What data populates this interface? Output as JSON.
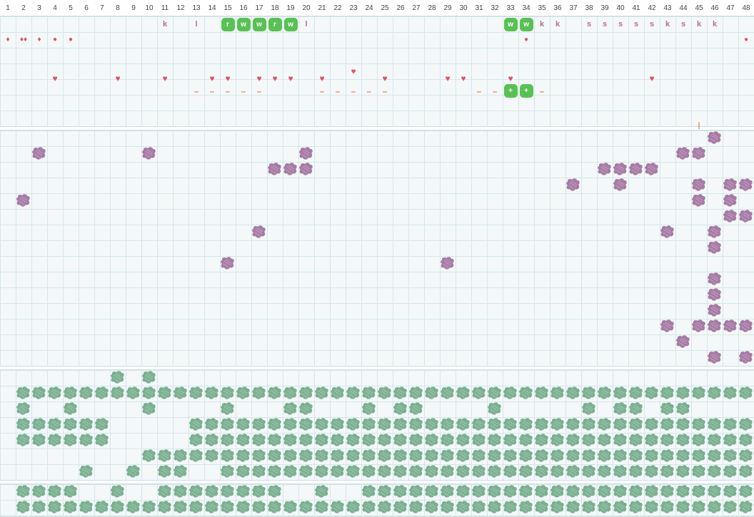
{
  "grid": {
    "columns": [
      "1",
      "2",
      "3",
      "4",
      "5",
      "6",
      "7",
      "8",
      "9",
      "10",
      "11",
      "12",
      "13",
      "14",
      "15",
      "16",
      "17",
      "18",
      "19",
      "20",
      "21",
      "22",
      "23",
      "24",
      "25",
      "26",
      "27",
      "28",
      "29",
      "30",
      "31",
      "32",
      "33",
      "34",
      "35",
      "36",
      "37",
      "38",
      "39",
      "40",
      "41",
      "42",
      "43",
      "44",
      "45",
      "46",
      "47",
      "48"
    ]
  },
  "colors": {
    "grid_bg": "#f4f8f9",
    "grid_line": "#d5e6ea",
    "purple_blob": "#a77ba5",
    "green_blob": "#7bb091",
    "green_tile": "#59c154",
    "red_marker": "#e0506a",
    "orange_marker": "#f08050",
    "letter_marker": "#b56f8e"
  },
  "icons": {
    "blob_purple": "purple-blob-icon",
    "blob_green": "green-blob-icon",
    "heart": "heart-icon",
    "drop": "drop-icon",
    "dot": "dot-icon"
  },
  "markers": [
    {
      "col": 11,
      "row": 1,
      "kind": "letter",
      "text": "k"
    },
    {
      "col": 13,
      "row": 1,
      "kind": "letter",
      "text": "l"
    },
    {
      "col": 15,
      "row": 1,
      "kind": "tile",
      "text": "r"
    },
    {
      "col": 16,
      "row": 1,
      "kind": "tile",
      "text": "w"
    },
    {
      "col": 17,
      "row": 1,
      "kind": "tile",
      "text": "w"
    },
    {
      "col": 18,
      "row": 1,
      "kind": "tile",
      "text": "r"
    },
    {
      "col": 19,
      "row": 1,
      "kind": "tile",
      "text": "w"
    },
    {
      "col": 20,
      "row": 1,
      "kind": "letter",
      "text": "l"
    },
    {
      "col": 33,
      "row": 1,
      "kind": "tile",
      "text": "w"
    },
    {
      "col": 34,
      "row": 1,
      "kind": "tile",
      "text": "w"
    },
    {
      "col": 35,
      "row": 1,
      "kind": "letter",
      "text": "k"
    },
    {
      "col": 36,
      "row": 1,
      "kind": "letter",
      "text": "k"
    },
    {
      "col": 38,
      "row": 1,
      "kind": "letter",
      "text": "s"
    },
    {
      "col": 39,
      "row": 1,
      "kind": "letter",
      "text": "s"
    },
    {
      "col": 40,
      "row": 1,
      "kind": "letter",
      "text": "s"
    },
    {
      "col": 41,
      "row": 1,
      "kind": "letter",
      "text": "s"
    },
    {
      "col": 42,
      "row": 1,
      "kind": "letter",
      "text": "s"
    },
    {
      "col": 43,
      "row": 1,
      "kind": "letter",
      "text": "k"
    },
    {
      "col": 44,
      "row": 1,
      "kind": "letter",
      "text": "s"
    },
    {
      "col": 45,
      "row": 1,
      "kind": "letter",
      "text": "k"
    },
    {
      "col": 46,
      "row": 1,
      "kind": "letter",
      "text": "k"
    },
    {
      "col": 1,
      "row": 2,
      "kind": "drop",
      "text": "♦"
    },
    {
      "col": 2,
      "row": 2,
      "kind": "drop",
      "text": "♦♦"
    },
    {
      "col": 3,
      "row": 2,
      "kind": "drop",
      "text": "♦"
    },
    {
      "col": 4,
      "row": 2,
      "kind": "dot",
      "text": "●"
    },
    {
      "col": 5,
      "row": 2,
      "kind": "dot",
      "text": "●"
    },
    {
      "col": 34,
      "row": 2,
      "kind": "dot",
      "text": "●"
    },
    {
      "col": 48,
      "row": 2,
      "kind": "dot",
      "text": "●"
    },
    {
      "col": 23,
      "row": 4,
      "kind": "heart",
      "text": "♥"
    },
    {
      "col": 4,
      "row": 4.45,
      "kind": "heart",
      "text": "♥"
    },
    {
      "col": 8,
      "row": 4.45,
      "kind": "heart",
      "text": "♥"
    },
    {
      "col": 11,
      "row": 4.45,
      "kind": "heart",
      "text": "♥"
    },
    {
      "col": 14,
      "row": 4.45,
      "kind": "heart",
      "text": "♥"
    },
    {
      "col": 15,
      "row": 4.45,
      "kind": "heart",
      "text": "♥"
    },
    {
      "col": 17,
      "row": 4.45,
      "kind": "heart",
      "text": "♥"
    },
    {
      "col": 18,
      "row": 4.45,
      "kind": "heart",
      "text": "♥"
    },
    {
      "col": 19,
      "row": 4.45,
      "kind": "heart",
      "text": "♥"
    },
    {
      "col": 21,
      "row": 4.45,
      "kind": "heart",
      "text": "♥"
    },
    {
      "col": 25,
      "row": 4.45,
      "kind": "heart",
      "text": "♥"
    },
    {
      "col": 29,
      "row": 4.45,
      "kind": "heart",
      "text": "♥"
    },
    {
      "col": 30,
      "row": 4.45,
      "kind": "heart",
      "text": "♥"
    },
    {
      "col": 33,
      "row": 4.45,
      "kind": "heart",
      "text": "♥"
    },
    {
      "col": 42,
      "row": 4.45,
      "kind": "heart",
      "text": "♥"
    },
    {
      "col": 13,
      "row": 5.25,
      "kind": "dash",
      "text": "–"
    },
    {
      "col": 14,
      "row": 5.25,
      "kind": "dash",
      "text": "–"
    },
    {
      "col": 15,
      "row": 5.25,
      "kind": "dash",
      "text": "–"
    },
    {
      "col": 16,
      "row": 5.25,
      "kind": "dash",
      "text": "–"
    },
    {
      "col": 17,
      "row": 5.25,
      "kind": "dash",
      "text": "–"
    },
    {
      "col": 21,
      "row": 5.25,
      "kind": "dash",
      "text": "–"
    },
    {
      "col": 22,
      "row": 5.25,
      "kind": "dash",
      "text": "–"
    },
    {
      "col": 23,
      "row": 5.25,
      "kind": "dash",
      "text": "–"
    },
    {
      "col": 24,
      "row": 5.25,
      "kind": "dash",
      "text": "–"
    },
    {
      "col": 25,
      "row": 5.25,
      "kind": "dash",
      "text": "–"
    },
    {
      "col": 31,
      "row": 5.25,
      "kind": "dash",
      "text": "–"
    },
    {
      "col": 32,
      "row": 5.25,
      "kind": "dash",
      "text": "–"
    },
    {
      "col": 33,
      "row": 5.25,
      "kind": "tile",
      "text": "+"
    },
    {
      "col": 34,
      "row": 5.25,
      "kind": "tile",
      "text": "+"
    },
    {
      "col": 35,
      "row": 5.25,
      "kind": "dash",
      "text": "–"
    },
    {
      "col": 45,
      "row": 7.5,
      "kind": "tick",
      "text": "|"
    }
  ],
  "purple_blobs": [
    [
      46,
      0
    ],
    [
      3,
      1
    ],
    [
      10,
      1
    ],
    [
      20,
      1
    ],
    [
      44,
      1
    ],
    [
      45,
      1
    ],
    [
      18,
      2
    ],
    [
      19,
      2
    ],
    [
      20,
      2
    ],
    [
      39,
      2
    ],
    [
      40,
      2
    ],
    [
      41,
      2
    ],
    [
      42,
      2
    ],
    [
      37,
      3
    ],
    [
      40,
      3
    ],
    [
      45,
      3
    ],
    [
      47,
      3
    ],
    [
      48,
      3
    ],
    [
      2,
      4
    ],
    [
      45,
      4
    ],
    [
      47,
      4
    ],
    [
      47,
      5
    ],
    [
      48,
      5
    ],
    [
      17,
      6
    ],
    [
      43,
      6
    ],
    [
      46,
      6
    ],
    [
      46,
      7
    ],
    [
      15,
      8
    ],
    [
      29,
      8
    ],
    [
      46,
      9
    ],
    [
      46,
      10
    ],
    [
      46,
      11
    ],
    [
      43,
      12
    ],
    [
      45,
      12
    ],
    [
      46,
      12
    ],
    [
      47,
      12
    ],
    [
      48,
      12
    ],
    [
      44,
      13
    ],
    [
      46,
      14
    ],
    [
      48,
      14
    ]
  ],
  "green_blob_rows_3": [
    "       x x                                      ",
    " xxxxxxxxxxxxxxxxxxxxxxxxxxxxxxxxxxxxxxxxxxxxxxx",
    " x  x    x    x   xx   x xx    x     x xx xx    ",
    " xxxxxx     xxxxxxxxxxxxxxxxxxxxxxxxxxxxxxxxxxxx",
    " xxxxxx     xxxxxxxxxxxxxxxxxxxxxxxxxxxxxxxxxxxx",
    "         xxxxxxxxxxxxxxxxxxxxxxxxxxxxxxxxxxxxxxx",
    "     x  x xx  xxxxxxxxxxxxxxxxxxxxxxxxxxxxxxxxxx"
  ],
  "green_blob_rows_4": [
    " xxxx  x  xxxxxxxx  x  xxxxxxxxxxxxxxxxxxxxxxxxx",
    " xxxxxxxxxxxxxxxxxxxxxxxxxxxxxxxxxxxxxxxxxxxxxxx"
  ]
}
